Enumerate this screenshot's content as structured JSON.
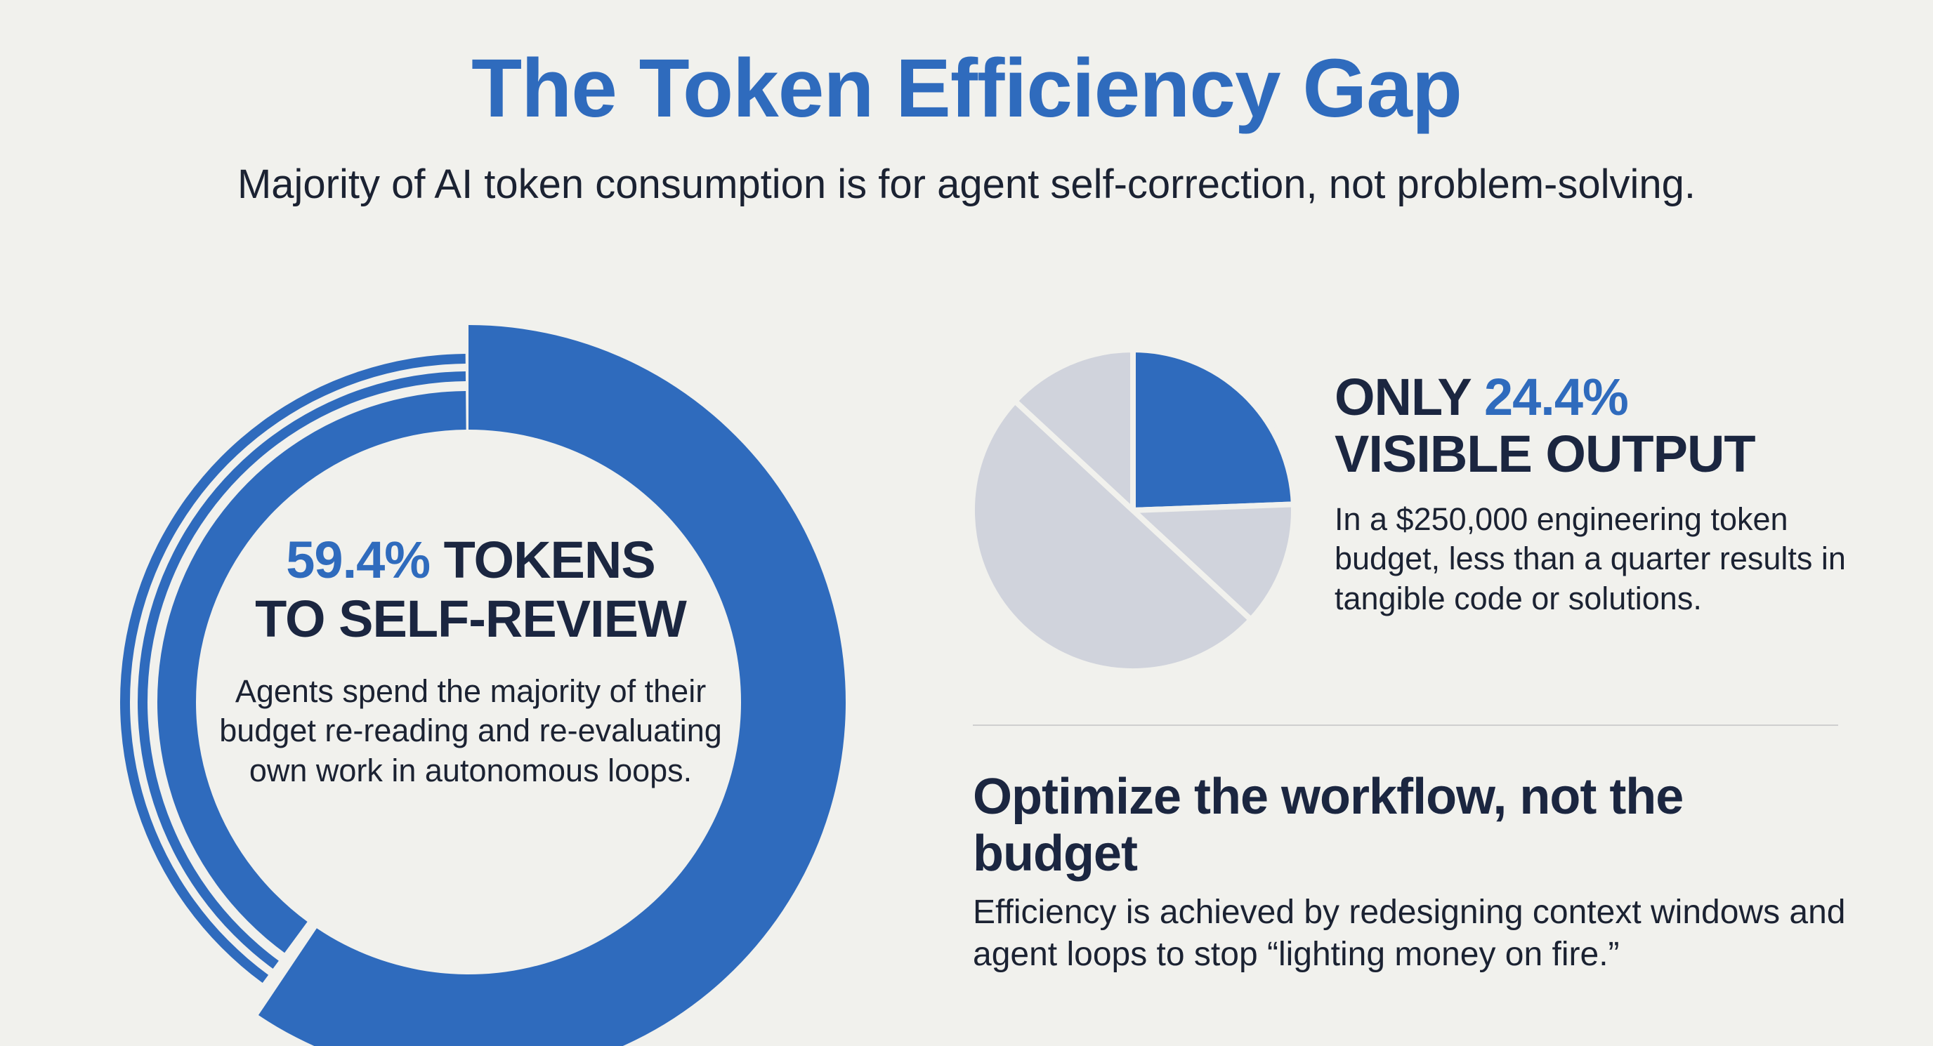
{
  "title": "The Token Efficiency Gap",
  "subtitle": "Majority of AI token consumption is for agent self-correction, not problem-solving.",
  "colors": {
    "accent": "#2f6bbd",
    "muted": "#d0d3dc",
    "text_dark": "#1b2640",
    "background": "#f1f1ed"
  },
  "self_review": {
    "percent_text": "59.4%",
    "head_rest": "TOKENS",
    "head_line2": "TO SELF-REVIEW",
    "body": "Agents spend the majority of their budget re-reading and re-evaluating own work in autonomous loops."
  },
  "visible_output": {
    "prefix": "ONLY",
    "percent_text": "24.4%",
    "head_line2": "VISIBLE OUTPUT",
    "body": "In a $250,000 engineering token budget, less than a quarter results in tangible code or solutions."
  },
  "optimize": {
    "head": "Optimize the workflow, not the budget",
    "body": "Efficiency is achieved by redesigning context windows and agent loops to stop “lighting money on fire.”"
  },
  "chart_data": [
    {
      "type": "pie",
      "variant": "donut",
      "title": "",
      "slices": [
        {
          "label": "Self-review",
          "value": 59.4,
          "color": "#2f6bbd"
        },
        {
          "label": "",
          "value": 40.6,
          "color": "#2f6bbd"
        }
      ]
    },
    {
      "type": "pie",
      "title": "",
      "slices": [
        {
          "label": "Visible output",
          "value": 24.4,
          "color": "#2f6bbd"
        },
        {
          "label": "",
          "value": 12.5,
          "color": "#d0d3dc"
        },
        {
          "label": "",
          "value": 50.0,
          "color": "#d0d3dc"
        },
        {
          "label": "",
          "value": 13.1,
          "color": "#d0d3dc"
        }
      ]
    }
  ]
}
